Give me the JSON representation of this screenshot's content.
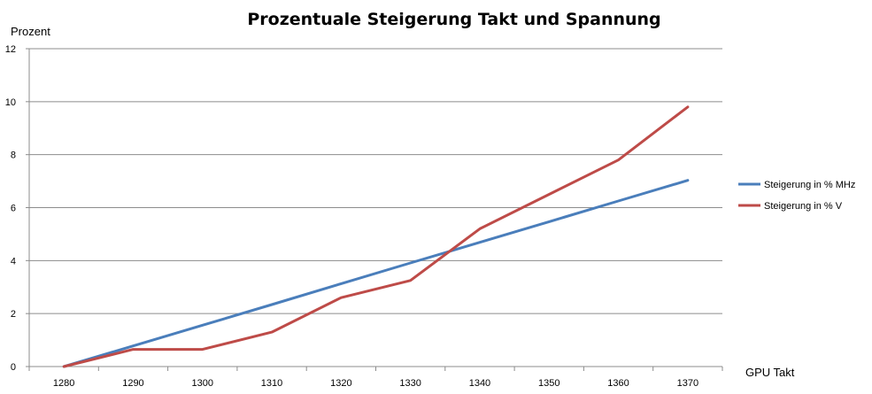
{
  "chart_data": {
    "type": "line",
    "title": "Prozentuale Steigerung Takt und Spannung",
    "xlabel": "GPU Takt",
    "ylabel": "Prozent",
    "x": [
      1280,
      1290,
      1300,
      1310,
      1320,
      1330,
      1340,
      1350,
      1360,
      1370
    ],
    "x_tick_labels": [
      "1280",
      "1290",
      "1300",
      "1310",
      "1320",
      "1330",
      "1340",
      "1350",
      "1360",
      "1370"
    ],
    "y_ticks": [
      0,
      2,
      4,
      6,
      8,
      10,
      12
    ],
    "y_tick_labels": [
      "0",
      "2",
      "4",
      "6",
      "8",
      "10",
      "12"
    ],
    "ylim": [
      0,
      12
    ],
    "grid": true,
    "legend_position": "right",
    "series": [
      {
        "name": "Steigerung in % MHz",
        "color": "#4a7ebb",
        "values": [
          0,
          0.78,
          1.56,
          2.34,
          3.13,
          3.91,
          4.69,
          5.47,
          6.25,
          7.03
        ]
      },
      {
        "name": "Steigerung in % V",
        "color": "#be4b48",
        "values": [
          0,
          0.65,
          0.65,
          1.3,
          2.6,
          3.25,
          5.2,
          6.5,
          7.8,
          9.8
        ]
      }
    ]
  }
}
